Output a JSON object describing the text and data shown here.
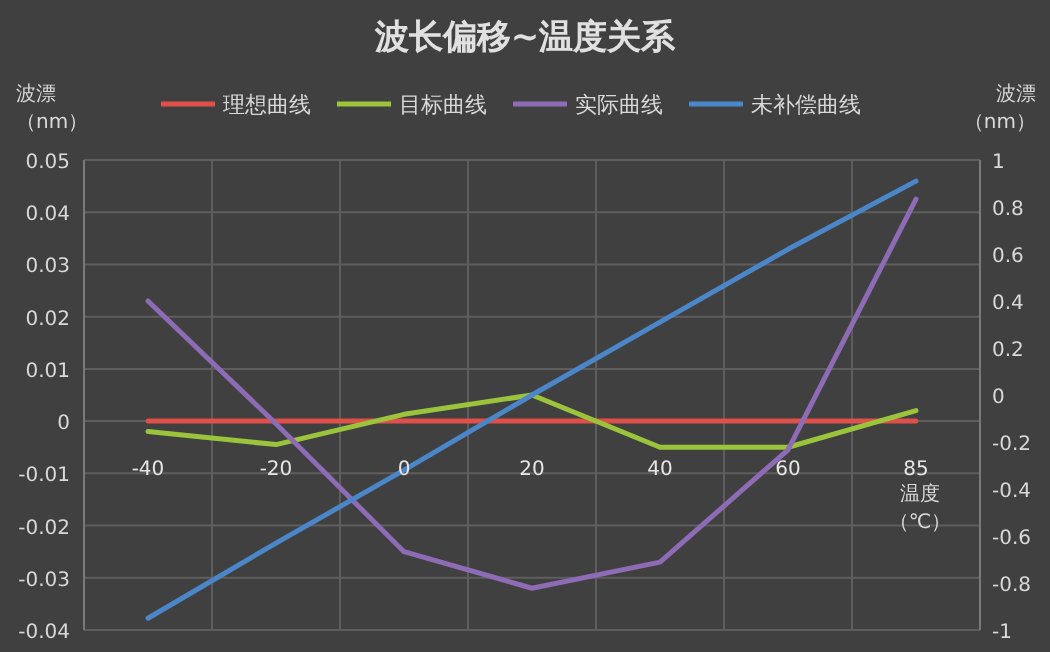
{
  "chart_data": {
    "type": "line",
    "title": "波长偏移~温度关系",
    "xlabel": "温度（℃）",
    "ylabel": "波漂（nm）",
    "y2label": "波漂（nm）",
    "categories": [
      "-40",
      "-20",
      "0",
      "20",
      "40",
      "60",
      "85"
    ],
    "series": [
      {
        "name": "理想曲线",
        "color": "#e0504a",
        "values": [
          0,
          0,
          0,
          0,
          0,
          0,
          0
        ]
      },
      {
        "name": "目标曲线",
        "color": "#9bc43c",
        "values": [
          -0.002,
          -0.0045,
          0.0013,
          0.005,
          -0.005,
          -0.005,
          0.002
        ]
      },
      {
        "name": "实际曲线",
        "color": "#8e6bb5",
        "values": [
          0.023,
          -0.0005,
          -0.025,
          -0.032,
          -0.027,
          -0.0055,
          0.0425
        ]
      },
      {
        "name": "未补偿曲线",
        "color": "#4a86c8",
        "axis": "y2",
        "values": [
          -0.95,
          -0.63,
          -0.32,
          0.0,
          0.31,
          0.62,
          0.91
        ]
      }
    ],
    "ylim": [
      -0.04,
      0.05
    ],
    "yticks": [
      -0.04,
      -0.03,
      -0.02,
      -0.01,
      0,
      0.01,
      0.02,
      0.03,
      0.04,
      0.05
    ],
    "y2lim": [
      -1,
      1
    ],
    "y2ticks": [
      -1,
      -0.8,
      -0.6,
      -0.4,
      -0.2,
      0,
      0.2,
      0.4,
      0.6,
      0.8,
      1
    ],
    "grid": true,
    "legend": "top",
    "marker": "none",
    "line_style": "solid"
  }
}
